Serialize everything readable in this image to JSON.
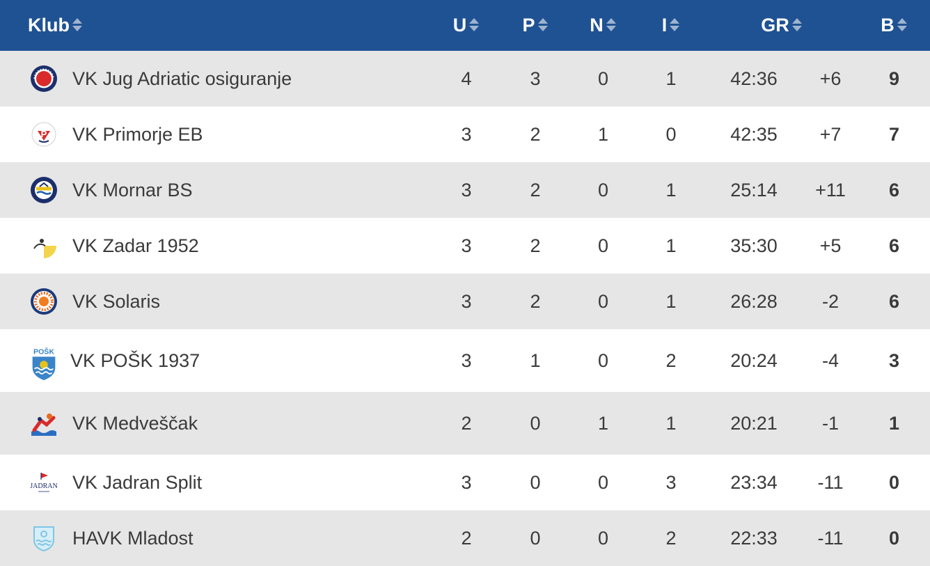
{
  "columns": {
    "club": "Klub",
    "played": "U",
    "won": "P",
    "drawn": "N",
    "lost": "I",
    "goals": "GR",
    "points": "B"
  },
  "rows": [
    {
      "club": "VK Jug Adriatic osiguranje",
      "logo": "jug-logo",
      "played": "4",
      "won": "3",
      "drawn": "0",
      "lost": "1",
      "goals": "42:36",
      "diff": "+6",
      "points": "9"
    },
    {
      "club": "VK Primorje EB",
      "logo": "primorje-logo",
      "played": "3",
      "won": "2",
      "drawn": "1",
      "lost": "0",
      "goals": "42:35",
      "diff": "+7",
      "points": "7"
    },
    {
      "club": "VK Mornar BS",
      "logo": "mornar-logo",
      "played": "3",
      "won": "2",
      "drawn": "0",
      "lost": "1",
      "goals": "25:14",
      "diff": "+11",
      "points": "6"
    },
    {
      "club": "VK Zadar 1952",
      "logo": "zadar-logo",
      "played": "3",
      "won": "2",
      "drawn": "0",
      "lost": "1",
      "goals": "35:30",
      "diff": "+5",
      "points": "6"
    },
    {
      "club": "VK Solaris",
      "logo": "solaris-logo",
      "played": "3",
      "won": "2",
      "drawn": "0",
      "lost": "1",
      "goals": "26:28",
      "diff": "-2",
      "points": "6"
    },
    {
      "club": "VK POŠK 1937",
      "logo": "posk-logo",
      "played": "3",
      "won": "1",
      "drawn": "0",
      "lost": "2",
      "goals": "20:24",
      "diff": "-4",
      "points": "3"
    },
    {
      "club": "VK Medveščak",
      "logo": "medvescak-logo",
      "played": "2",
      "won": "0",
      "drawn": "1",
      "lost": "1",
      "goals": "20:21",
      "diff": "-1",
      "points": "1"
    },
    {
      "club": "VK Jadran Split",
      "logo": "jadran-logo",
      "played": "3",
      "won": "0",
      "drawn": "0",
      "lost": "3",
      "goals": "23:34",
      "diff": "-11",
      "points": "0"
    },
    {
      "club": "HAVK Mladost",
      "logo": "mladost-logo",
      "played": "2",
      "won": "0",
      "drawn": "0",
      "lost": "2",
      "goals": "22:33",
      "diff": "-11",
      "points": "0"
    }
  ],
  "logo_text": {
    "posk": "POŠK",
    "jadran": "JADRAN"
  },
  "colors": {
    "header_bg": "#1f5293",
    "header_text": "#ffffff",
    "row_alt": "#e6e6e6",
    "row": "#ffffff"
  }
}
